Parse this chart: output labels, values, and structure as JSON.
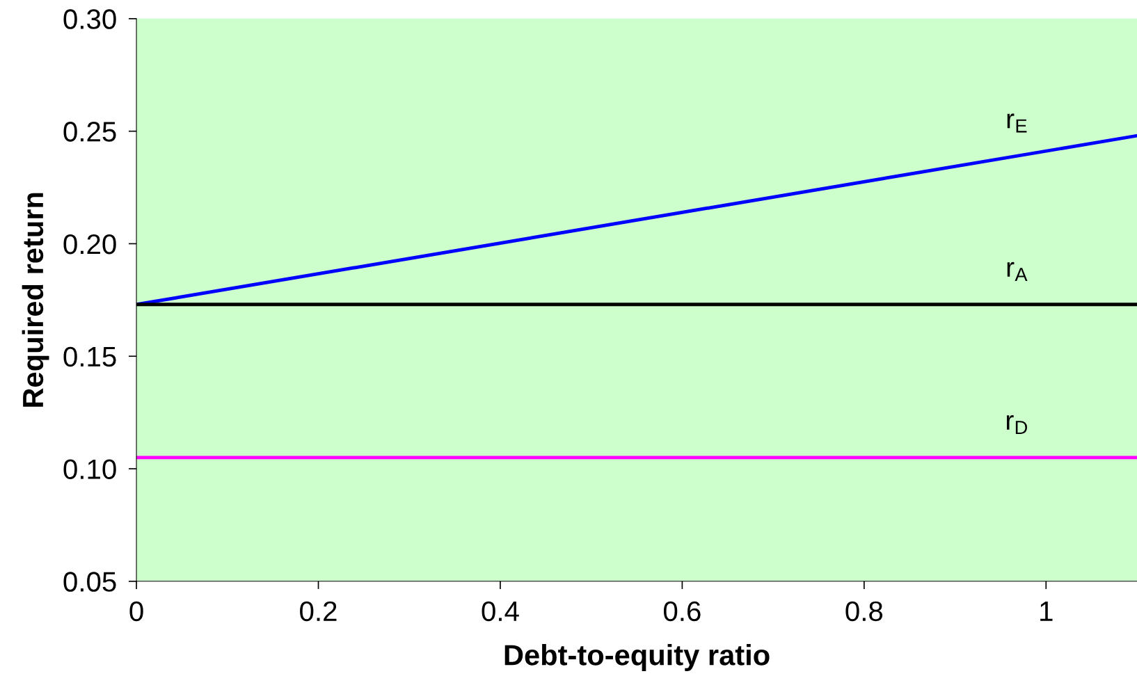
{
  "chart_data": {
    "type": "line",
    "xlabel": "Debt-to-equity ratio",
    "ylabel": "Required return",
    "x": [
      0,
      1.1
    ],
    "series": [
      {
        "name": "r$_{E}$",
        "color": "#0000ff",
        "values": [
          0.173,
          0.248
        ]
      },
      {
        "name": "r$_{A}$",
        "color": "#000000",
        "values": [
          0.173,
          0.173
        ]
      },
      {
        "name": "r$_{D}$",
        "color": "#ff00ff",
        "values": [
          0.105,
          0.105
        ]
      }
    ],
    "xlim": [
      0,
      1.1
    ],
    "xticks": [
      0,
      0.2,
      0.4,
      0.6,
      0.8,
      1
    ],
    "ylim": [
      0.05,
      0.3
    ],
    "yticks": [
      {
        "value": 0.05,
        "label": "0.05"
      },
      {
        "value": 0.1,
        "label": "0.10"
      },
      {
        "value": 0.15,
        "label": "0.15"
      },
      {
        "value": 0.2,
        "label": "0.20"
      },
      {
        "value": 0.25,
        "label": "0.25"
      },
      {
        "value": 0.3,
        "label": "0.30"
      }
    ],
    "grid": false,
    "legend": false,
    "marker": "none",
    "line_style": "solid"
  }
}
